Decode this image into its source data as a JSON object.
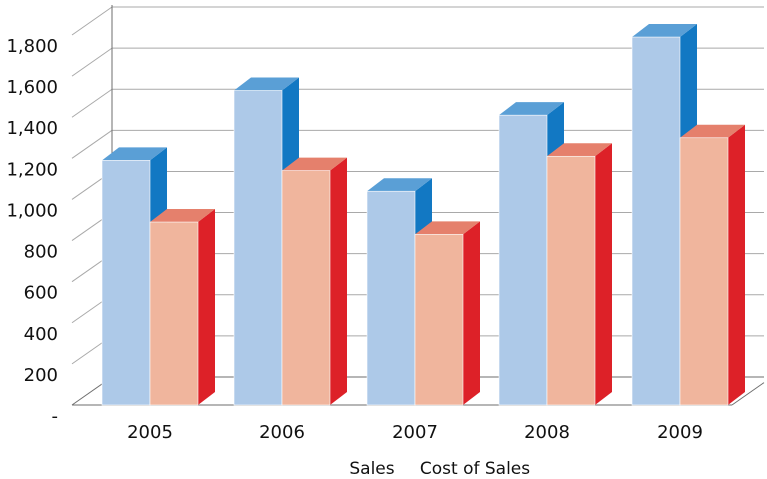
{
  "chart_data": {
    "type": "bar",
    "categories": [
      "2005",
      "2006",
      "2007",
      "2008",
      "2009"
    ],
    "series": [
      {
        "name": "Sales",
        "values": [
          1190,
          1530,
          1040,
          1410,
          1790
        ],
        "colors": {
          "front": "#adc9e8",
          "side": "#1278c3",
          "top": "#5a9fd6"
        }
      },
      {
        "name": "Cost of Sales",
        "values": [
          890,
          1140,
          830,
          1210,
          1300
        ],
        "colors": {
          "front": "#f0b59d",
          "side": "#dd2128",
          "top": "#e5806c"
        }
      }
    ],
    "yticks": [
      "-",
      "200",
      "400",
      "600",
      "800",
      "1,000",
      "1,200",
      "1,400",
      "1,600",
      "1,800"
    ],
    "ylim": [
      0,
      1800
    ],
    "grid": true,
    "legend_position": "bottom",
    "title": "",
    "xlabel": "",
    "ylabel": ""
  }
}
